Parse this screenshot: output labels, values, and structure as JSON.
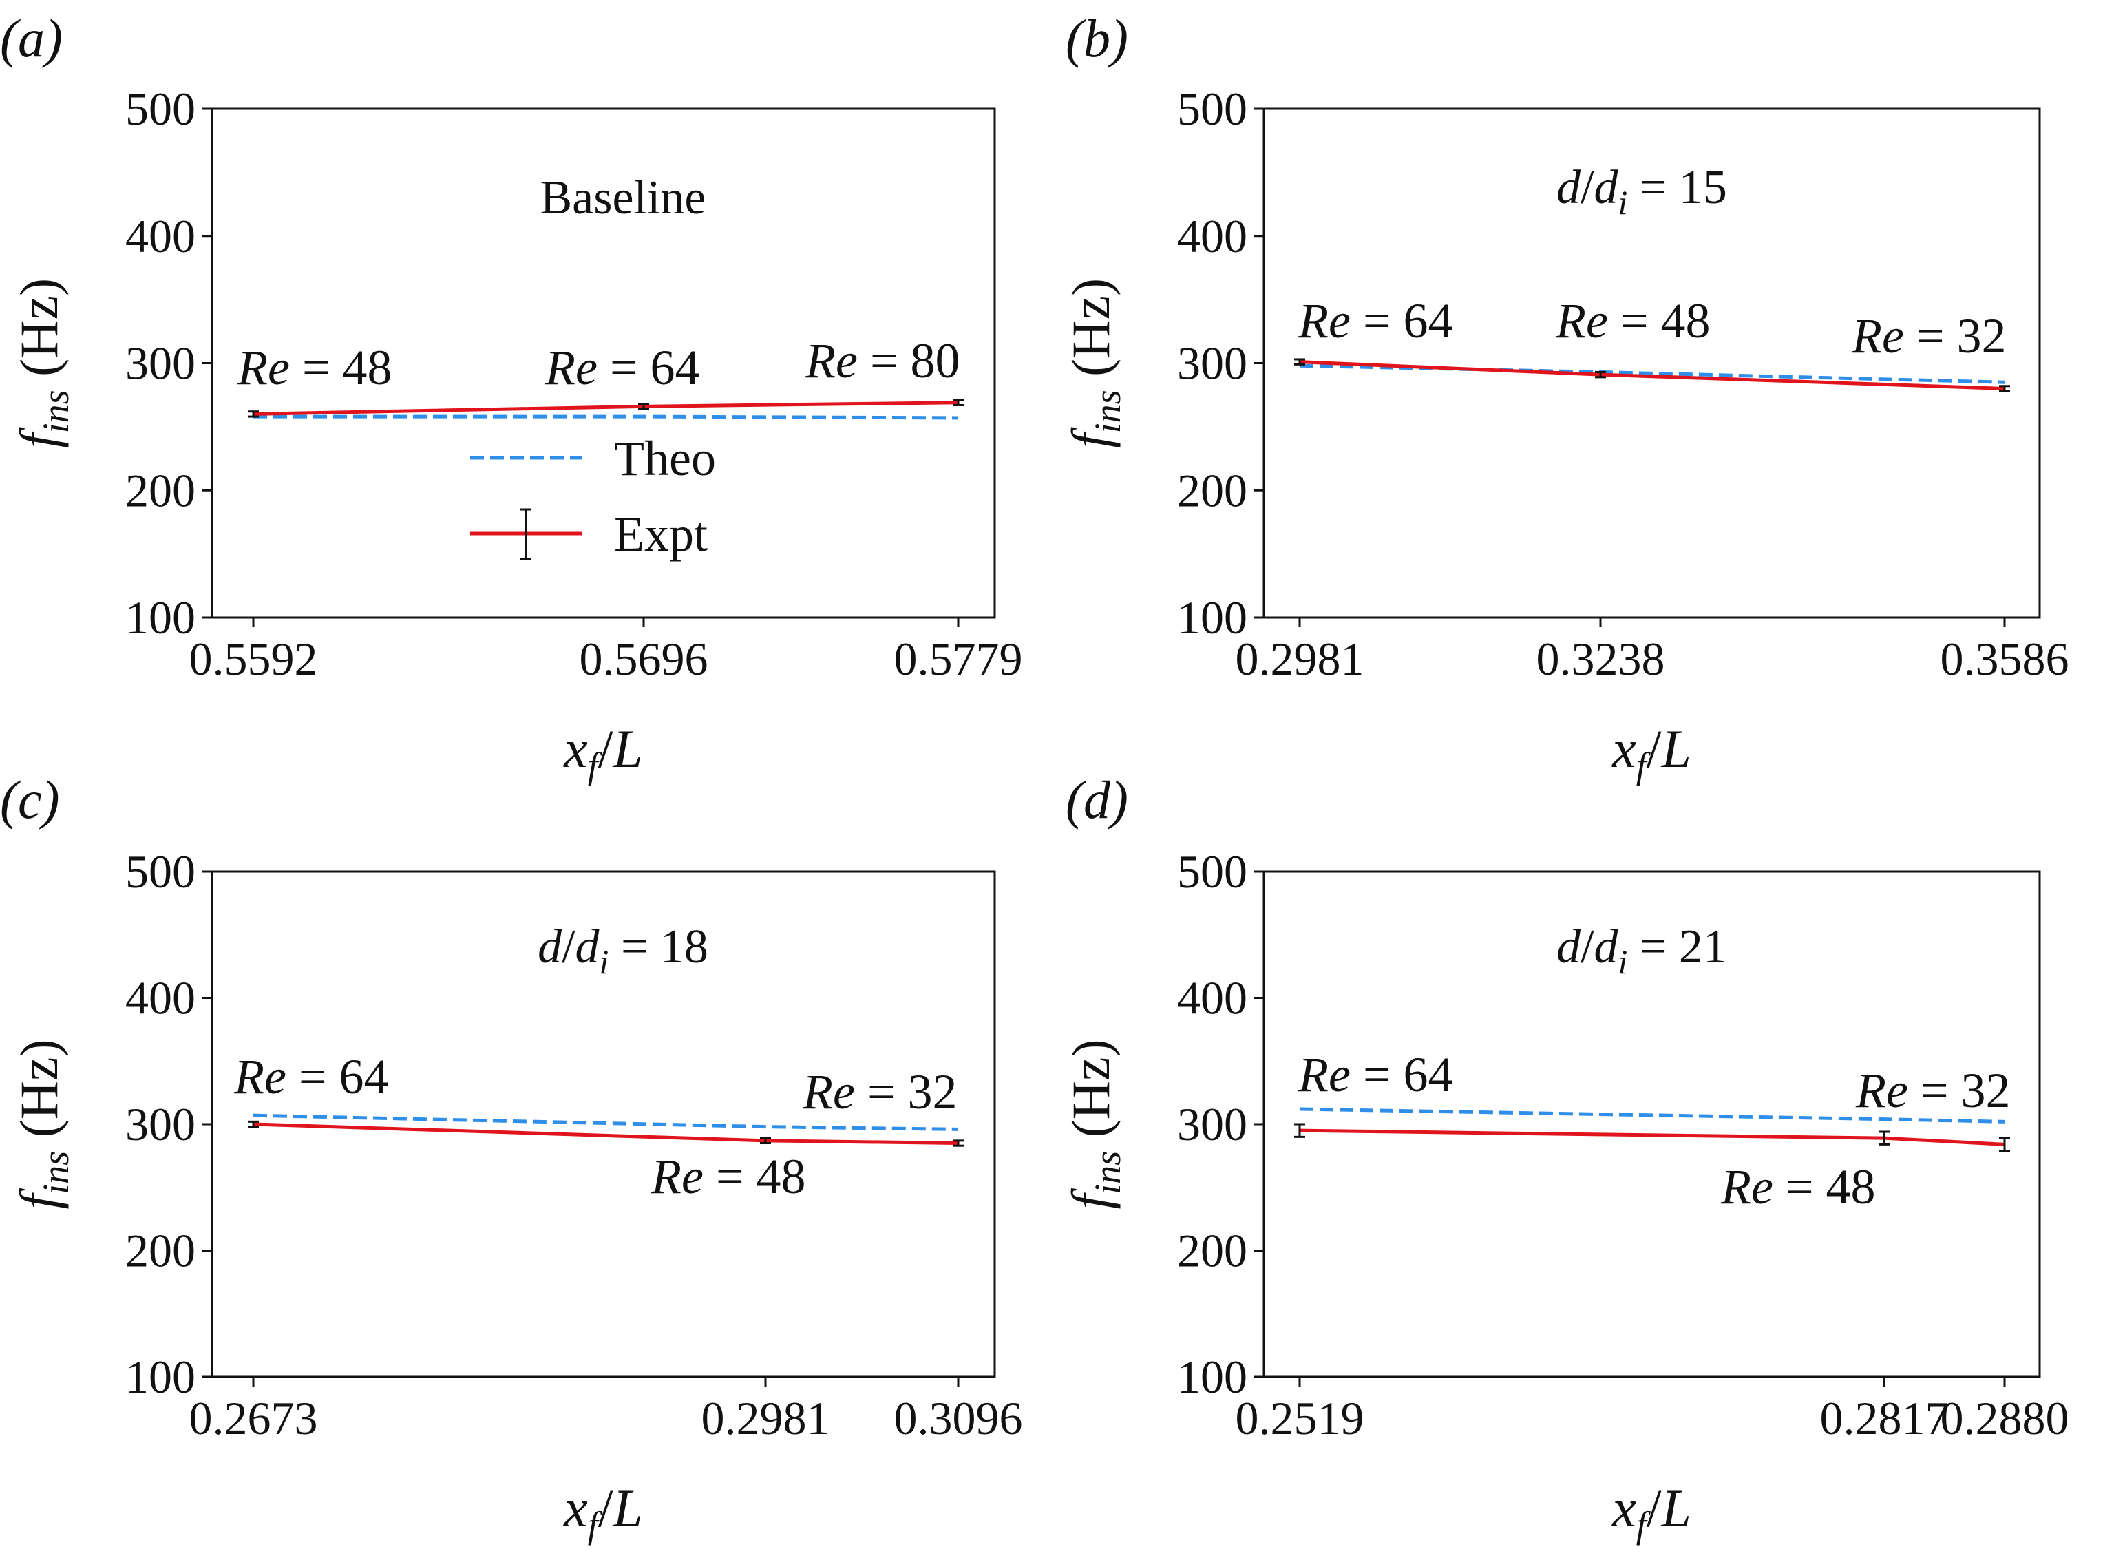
{
  "chart_data": [
    {
      "type": "line",
      "panel_label": "(a)",
      "title": "Baseline",
      "xlabel": "x_f/L",
      "ylabel": "f_ins (Hz)",
      "ylim": [
        100,
        500
      ],
      "yticks": [
        100,
        200,
        300,
        400,
        500
      ],
      "x": [
        0.5592,
        0.5696,
        0.5779
      ],
      "xtick_labels": [
        "0.5592",
        "0.5696",
        "0.5779"
      ],
      "legend": {
        "location": "center",
        "entries": [
          "Theo",
          "Expt"
        ]
      },
      "series": [
        {
          "name": "Theo",
          "style": "dashed",
          "color": "#2f8fe8",
          "values": [
            258,
            258,
            257
          ]
        },
        {
          "name": "Expt",
          "style": "solid",
          "color": "#e0141c",
          "values": [
            260,
            266,
            269
          ],
          "errors": [
            2,
            2,
            2
          ]
        }
      ],
      "annotations": [
        {
          "re": "Re",
          "text": " = 48",
          "x": 0.5592,
          "y": 290
        },
        {
          "re": "Re",
          "text": " = 64",
          "x": 0.5696,
          "y": 288
        },
        {
          "re": "Re",
          "text": " = 80",
          "x": 0.5779,
          "y": 292
        }
      ]
    },
    {
      "type": "line",
      "panel_label": "(b)",
      "title_parts": {
        "d": "d",
        "slash": "/",
        "di": "d",
        "sub": "i",
        "value": " = 15"
      },
      "xlabel": "x_f/L",
      "ylabel": "f_ins (Hz)",
      "ylim": [
        100,
        500
      ],
      "yticks": [
        100,
        200,
        300,
        400,
        500
      ],
      "x": [
        0.2981,
        0.3238,
        0.3586
      ],
      "xtick_labels": [
        "0.2981",
        "0.3238",
        "0.3586"
      ],
      "series": [
        {
          "name": "Theo",
          "style": "dashed",
          "color": "#2f8fe8",
          "values": [
            298,
            293,
            285
          ]
        },
        {
          "name": "Expt",
          "style": "solid",
          "color": "#e0141c",
          "values": [
            301,
            291,
            280
          ],
          "errors": [
            2,
            2,
            2
          ]
        }
      ],
      "annotations": [
        {
          "re": "Re",
          "text": " = 64",
          "x": 0.2981,
          "y": 318
        },
        {
          "re": "Re",
          "text": " = 48",
          "x": 0.3238,
          "y": 318
        },
        {
          "re": "Re",
          "text": " = 32",
          "x": 0.3586,
          "y": 306
        }
      ]
    },
    {
      "type": "line",
      "panel_label": "(c)",
      "title_parts": {
        "d": "d",
        "slash": "/",
        "di": "d",
        "sub": "i",
        "value": " = 18"
      },
      "xlabel": "x_f/L",
      "ylabel": "f_ins (Hz)",
      "ylim": [
        100,
        500
      ],
      "yticks": [
        100,
        200,
        300,
        400,
        500
      ],
      "x": [
        0.2673,
        0.2981,
        0.3096
      ],
      "xtick_labels": [
        "0.2673",
        "0.2981",
        "0.3096"
      ],
      "series": [
        {
          "name": "Theo",
          "style": "dashed",
          "color": "#2f8fe8",
          "values": [
            307,
            298,
            296
          ]
        },
        {
          "name": "Expt",
          "style": "solid",
          "color": "#e0141c",
          "values": [
            300,
            287,
            285
          ],
          "errors": [
            2,
            2,
            2
          ]
        }
      ],
      "annotations": [
        {
          "re": "Re",
          "text": " = 64",
          "x": 0.2673,
          "y": 320
        },
        {
          "re": "Re",
          "text": " = 48",
          "x": 0.2981,
          "y": 260
        },
        {
          "re": "Re",
          "text": " = 32",
          "x": 0.3096,
          "y": 312
        }
      ]
    },
    {
      "type": "line",
      "panel_label": "(d)",
      "title_parts": {
        "d": "d",
        "slash": "/",
        "di": "d",
        "sub": "i",
        "value": " = 21"
      },
      "xlabel": "x_f/L",
      "ylabel": "f_ins (Hz)",
      "ylim": [
        100,
        500
      ],
      "yticks": [
        100,
        200,
        300,
        400,
        500
      ],
      "x": [
        0.2519,
        0.2817,
        0.288
      ],
      "xtick_labels": [
        "0.2519",
        "0.2817",
        "0.2880"
      ],
      "series": [
        {
          "name": "Theo",
          "style": "dashed",
          "color": "#2f8fe8",
          "values": [
            312,
            304,
            302
          ]
        },
        {
          "name": "Expt",
          "style": "solid",
          "color": "#e0141c",
          "values": [
            295,
            289,
            284
          ],
          "errors": [
            5,
            5,
            5
          ]
        }
      ],
      "annotations": [
        {
          "re": "Re",
          "text": " = 64",
          "x": 0.2519,
          "y": 323
        },
        {
          "re": "Re",
          "text": " = 48",
          "x": 0.2817,
          "y": 253
        },
        {
          "re": "Re",
          "text": " = 32",
          "x": 0.288,
          "y": 313
        }
      ]
    }
  ]
}
